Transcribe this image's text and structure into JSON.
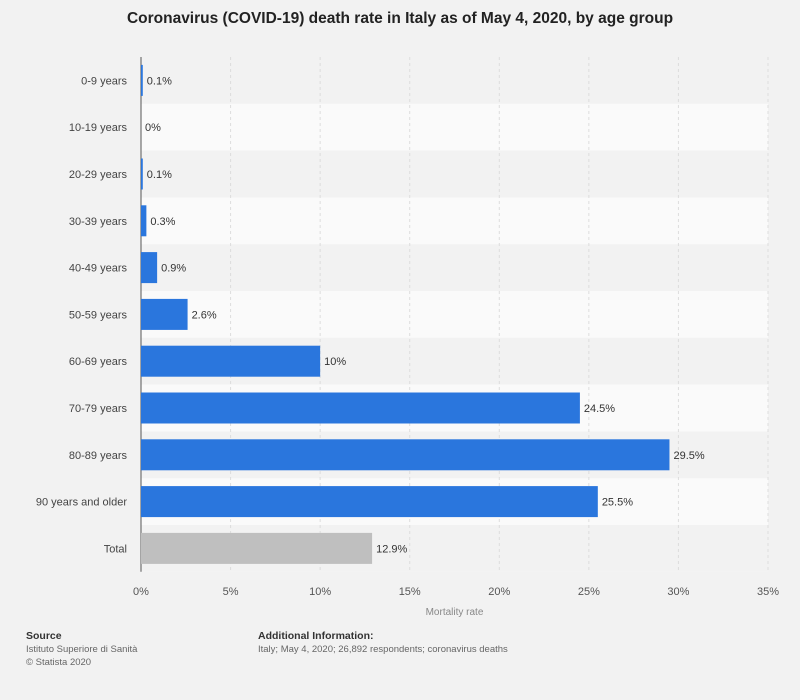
{
  "title": "Coronavirus (COVID-19) death rate in Italy as of May 4, 2020, by age group",
  "chart_data": {
    "type": "bar",
    "orientation": "horizontal",
    "categories": [
      "0-9 years",
      "10-19 years",
      "20-29 years",
      "30-39 years",
      "40-49 years",
      "50-59 years",
      "60-69 years",
      "70-79 years",
      "80-89 years",
      "90 years and older",
      "Total"
    ],
    "values": [
      0.1,
      0,
      0.1,
      0.3,
      0.9,
      2.6,
      10,
      24.5,
      29.5,
      25.5,
      12.9
    ],
    "value_labels": [
      "0.1%",
      "0%",
      "0.1%",
      "0.3%",
      "0.9%",
      "2.6%",
      "10%",
      "24.5%",
      "29.5%",
      "25.5%",
      "12.9%"
    ],
    "xlabel": "Mortality rate",
    "xlim": [
      0,
      35
    ],
    "x_ticks": [
      "0%",
      "5%",
      "10%",
      "15%",
      "20%",
      "25%",
      "30%",
      "35%"
    ],
    "grid": true,
    "colors": {
      "bar": "#2a76dd",
      "total_bar": "#bfbfbf",
      "stripe": "#f2f2f2",
      "plot_bg": "#fafafa"
    }
  },
  "footer": {
    "source_heading": "Source",
    "source_lines": [
      "Istituto Superiore di Sanità",
      "© Statista 2020"
    ],
    "info_heading": "Additional Information:",
    "info_text": "Italy; May 4, 2020; 26,892 respondents; coronavirus deaths"
  }
}
